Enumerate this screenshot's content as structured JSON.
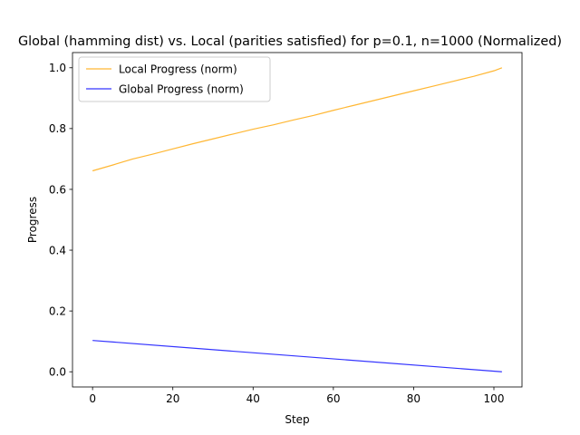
{
  "chart_data": {
    "type": "line",
    "title": "Global (hamming dist) vs. Local (parities satisfied) for p=0.1, n=1000 (Normalized)",
    "xlabel": "Step",
    "ylabel": "Progress",
    "xlim": [
      -5,
      107
    ],
    "ylim": [
      -0.05,
      1.05
    ],
    "x_ticks": [
      0,
      20,
      40,
      60,
      80,
      100
    ],
    "y_ticks": [
      0.0,
      0.2,
      0.4,
      0.6,
      0.8,
      1.0
    ],
    "x_tick_labels": [
      "0",
      "20",
      "40",
      "60",
      "80",
      "100"
    ],
    "y_tick_labels": [
      "0.0",
      "0.2",
      "0.4",
      "0.6",
      "0.8",
      "1.0"
    ],
    "grid": false,
    "legend_position": "upper-left",
    "series": [
      {
        "name": "Local Progress (norm)",
        "color": "#ffa500",
        "x": [
          0,
          5,
          10,
          15,
          20,
          25,
          30,
          35,
          40,
          45,
          50,
          55,
          60,
          65,
          70,
          75,
          80,
          85,
          90,
          95,
          100,
          102
        ],
        "y": [
          0.661,
          0.68,
          0.7,
          0.716,
          0.733,
          0.75,
          0.766,
          0.782,
          0.798,
          0.812,
          0.828,
          0.843,
          0.86,
          0.876,
          0.892,
          0.908,
          0.924,
          0.94,
          0.956,
          0.972,
          0.99,
          1.0
        ]
      },
      {
        "name": "Global Progress (norm)",
        "color": "#0000ff",
        "x": [
          0,
          102
        ],
        "y": [
          0.103,
          0.0
        ]
      }
    ]
  }
}
